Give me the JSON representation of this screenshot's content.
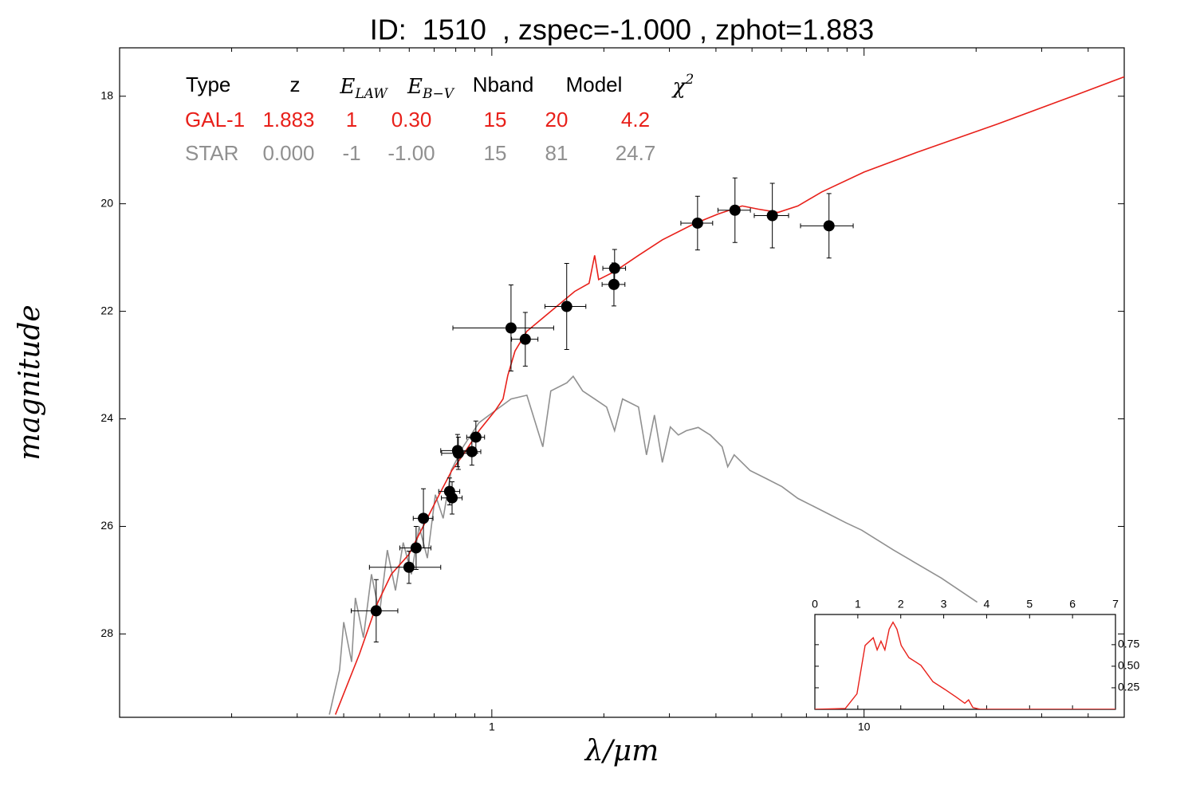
{
  "chart_data": [
    {
      "type": "sed",
      "title": "ID:  1510  , zspec=-1.000 , zphot=1.883",
      "xlabel": "λ/μm",
      "ylabel": "magnitude",
      "xscale": "log",
      "xlim": [
        0.1,
        50
      ],
      "ylim": [
        29.55,
        17.1
      ],
      "xticks": [
        1,
        10
      ],
      "xminorticks": [
        0.2,
        0.3,
        0.4,
        0.5,
        0.6,
        0.7,
        0.8,
        0.9,
        2,
        3,
        4,
        5,
        6,
        7,
        8,
        9,
        20,
        30,
        40
      ],
      "yticks": [
        18,
        20,
        22,
        24,
        26,
        28
      ],
      "points": {
        "color": "#000000",
        "x": [
          0.489,
          0.599,
          0.626,
          0.655,
          0.77,
          0.782,
          0.809,
          0.813,
          0.884,
          0.906,
          1.126,
          1.23,
          1.589,
          2.137,
          2.128,
          3.57,
          4.5,
          5.67,
          8.05
        ],
        "values": [
          27.57,
          26.76,
          26.4,
          25.85,
          25.35,
          25.47,
          24.59,
          24.64,
          24.61,
          24.34,
          22.31,
          22.52,
          21.91,
          21.2,
          21.5,
          20.36,
          20.12,
          20.22,
          20.41
        ],
        "xerr": [
          0.07,
          0.13,
          0.06,
          0.04,
          0.05,
          0.05,
          0.08,
          0.08,
          0.05,
          0.05,
          0.34,
          0.1,
          0.2,
          0.15,
          0.15,
          0.35,
          0.45,
          0.6,
          1.3
        ],
        "yerr": [
          0.58,
          0.3,
          0.4,
          0.55,
          0.25,
          0.3,
          0.3,
          0.3,
          0.25,
          0.3,
          0.8,
          0.5,
          0.8,
          0.35,
          0.4,
          0.5,
          0.6,
          0.6,
          0.6
        ]
      },
      "series": [
        {
          "name": "GAL-1",
          "color": "#e8201a",
          "x": [
            0.38,
            0.441,
            0.489,
            0.537,
            0.599,
            0.654,
            0.722,
            0.781,
            0.837,
            0.924,
            1.02,
            1.072,
            1.104,
            1.154,
            1.242,
            1.44,
            1.67,
            1.825,
            1.889,
            1.936,
            2.137,
            2.478,
            2.872,
            3.499,
            4.056,
            4.705,
            5.191,
            5.873,
            6.642,
            7.7,
            10.0,
            13.92,
            22.79,
            37.3,
            50
          ],
          "values": [
            29.5,
            28.37,
            27.48,
            26.89,
            26.52,
            26.0,
            25.41,
            24.96,
            24.67,
            24.22,
            23.85,
            23.63,
            23.19,
            22.74,
            22.37,
            22.0,
            21.63,
            21.48,
            20.96,
            21.41,
            21.26,
            20.96,
            20.67,
            20.37,
            20.19,
            20.04,
            20.1,
            20.16,
            20.04,
            19.78,
            19.41,
            19.04,
            18.52,
            17.97,
            17.64
          ]
        },
        {
          "name": "STAR",
          "color": "#909090",
          "x": [
            0.366,
            0.39,
            0.4,
            0.42,
            0.43,
            0.452,
            0.475,
            0.499,
            0.524,
            0.551,
            0.578,
            0.608,
            0.638,
            0.671,
            0.705,
            0.74,
            0.778,
            0.837,
            0.924,
            1.02,
            1.126,
            1.242,
            1.371,
            1.44,
            1.59,
            1.654,
            1.754,
            1.889,
            2.034,
            2.137,
            2.245,
            2.478,
            2.603,
            2.734,
            2.872,
            3.017,
            3.17,
            3.331,
            3.585,
            3.862,
            4.157,
            4.303,
            4.477,
            4.94,
            5.454,
            6.017,
            6.642,
            7.332,
            8.09,
            8.929,
            9.853,
            12.0,
            16.13,
            20.14
          ],
          "values": [
            29.5,
            28.67,
            27.78,
            28.52,
            27.33,
            28.07,
            26.89,
            27.63,
            26.44,
            27.19,
            26.3,
            26.89,
            26.0,
            26.59,
            25.41,
            25.85,
            24.96,
            24.52,
            24.07,
            23.85,
            23.63,
            23.56,
            24.52,
            23.48,
            23.33,
            23.21,
            23.48,
            23.63,
            23.78,
            24.22,
            23.63,
            23.78,
            24.67,
            23.93,
            24.81,
            24.15,
            24.3,
            24.22,
            24.16,
            24.3,
            24.52,
            24.89,
            24.67,
            24.96,
            25.11,
            25.26,
            25.48,
            25.63,
            25.78,
            25.93,
            26.07,
            26.44,
            26.96,
            27.41
          ]
        }
      ],
      "table": {
        "header": [
          "Type",
          "z",
          {
            "base": "E",
            "sub": "LAW"
          },
          {
            "base": "E",
            "sub": "B−V"
          },
          "Nband",
          "Model",
          {
            "base": "χ",
            "sup": "2"
          }
        ],
        "rows": [
          [
            "1.883",
            "1",
            "0.30",
            "15",
            "20",
            "4.2"
          ],
          [
            "0.000",
            "-1",
            "-1.00",
            "15",
            "81",
            "24.7"
          ]
        ]
      }
    },
    {
      "type": "line",
      "xlim": [
        0,
        7
      ],
      "ylim": [
        0,
        1.1
      ],
      "xticks": [
        0,
        1,
        2,
        3,
        4,
        5,
        6,
        7
      ],
      "yticks": [
        0.25,
        {
          "value": 0.5,
          "label": "0.50"
        },
        0.75
      ],
      "series": [
        {
          "color": "#e8201a",
          "x": [
            0,
            0.71,
            0.98,
            1.17,
            1.36,
            1.45,
            1.54,
            1.63,
            1.73,
            1.82,
            1.91,
            2.01,
            2.19,
            2.47,
            2.75,
            3.03,
            3.3,
            3.49,
            3.58,
            3.68,
            3.86,
            7
          ],
          "values": [
            0,
            0.01,
            0.18,
            0.74,
            0.83,
            0.69,
            0.79,
            0.69,
            0.93,
            1.01,
            0.93,
            0.74,
            0.6,
            0.51,
            0.32,
            0.23,
            0.14,
            0.07,
            0.11,
            0.02,
            0,
            0
          ]
        }
      ]
    }
  ]
}
